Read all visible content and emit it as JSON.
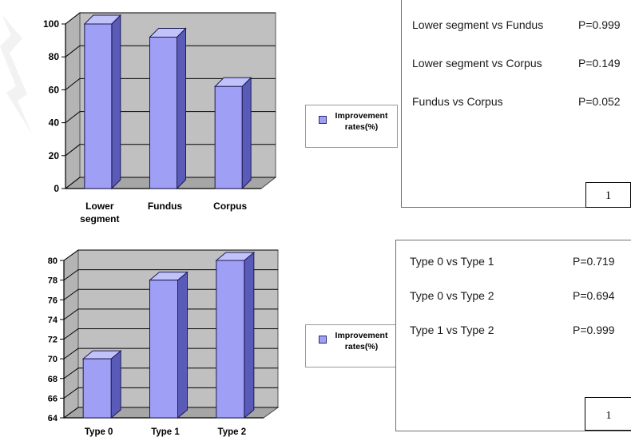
{
  "chart_data": [
    {
      "type": "bar",
      "categories": [
        "Lower segment",
        "Fundus",
        "Corpus"
      ],
      "series": [
        {
          "name": "Improvement rates(%)",
          "values": [
            100,
            92,
            62
          ]
        }
      ],
      "ylim": [
        0,
        100
      ],
      "yticks": [
        "0",
        "20",
        "40",
        "60",
        "80",
        "100"
      ],
      "grid": true,
      "three_d": true,
      "legend_placement": "right"
    },
    {
      "type": "bar",
      "categories": [
        "Type 0",
        "Type 1",
        "Type 2"
      ],
      "series": [
        {
          "name": "Improvement rates(%)",
          "values": [
            70,
            78,
            80
          ]
        }
      ],
      "ylim": [
        64,
        80
      ],
      "yticks": [
        "64",
        "66",
        "68",
        "70",
        "72",
        "74",
        "76",
        "78",
        "80"
      ],
      "grid": true,
      "three_d": true,
      "legend_placement": "right"
    }
  ],
  "legends": [
    {
      "label": "Improvement rates(%)"
    },
    {
      "label": "Improvement rates(%)"
    }
  ],
  "tables": {
    "top": {
      "rows": [
        {
          "comparison": "Lower segment vs Fundus",
          "p": "P=0.999"
        },
        {
          "comparison": "Lower segment vs Corpus",
          "p": "P=0.149"
        },
        {
          "comparison": "Fundus vs Corpus",
          "p": "P=0.052"
        }
      ],
      "tag": "1"
    },
    "bottom": {
      "rows": [
        {
          "comparison": "Type 0 vs Type 1",
          "p": "P=0.719"
        },
        {
          "comparison": "Type 0 vs Type 2",
          "p": "P=0.694"
        },
        {
          "comparison": "Type 1 vs Type 2",
          "p": "P=0.999"
        }
      ],
      "tag": "1"
    }
  },
  "colors": {
    "bar_front": "#9f9ff5",
    "bar_side": "#5a5ab8",
    "bar_top": "#c2c2fb",
    "bar_outline": "#1c1c55",
    "plot_back": "#c0c0c0",
    "plot_floor": "#a6a6a6",
    "grid": "#000000"
  }
}
